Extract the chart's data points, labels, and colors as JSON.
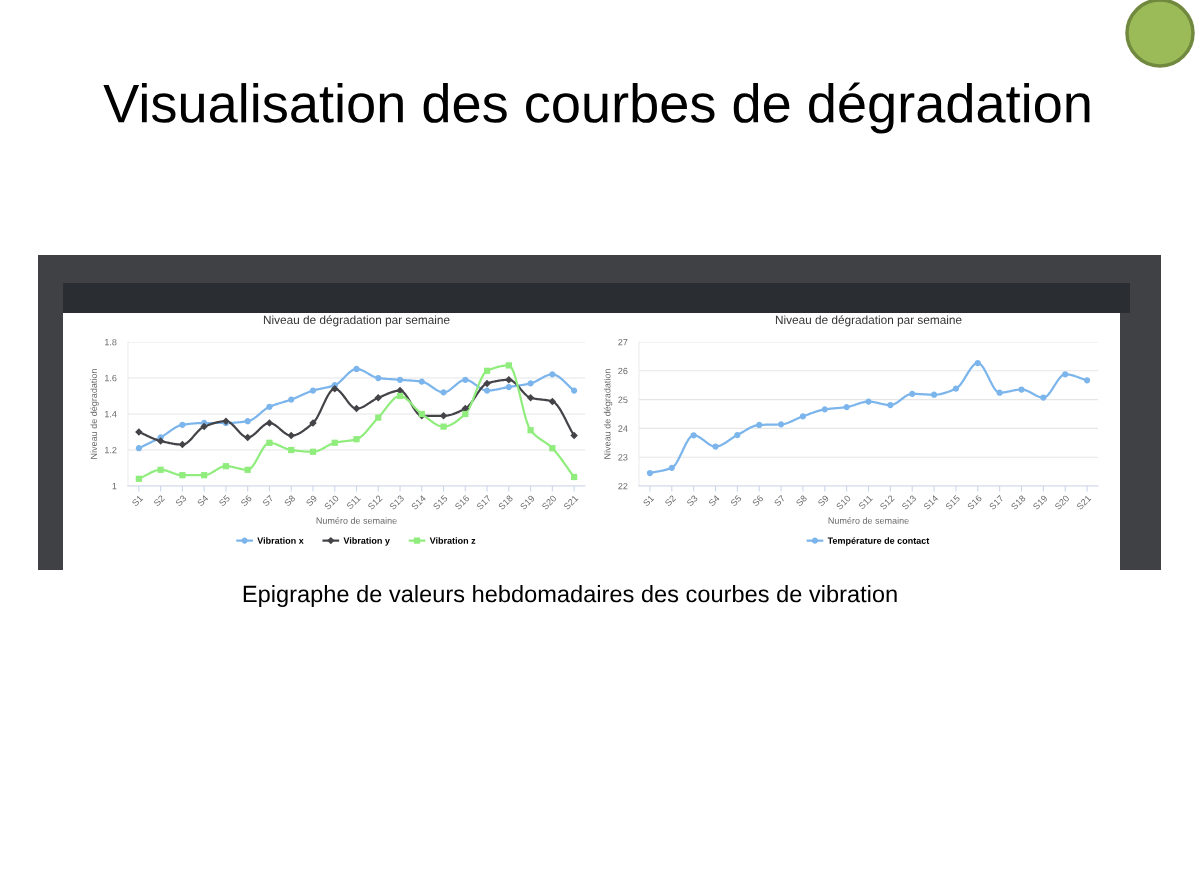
{
  "chart_data": [
    {
      "type": "line",
      "title": "Niveau de dégradation par semaine",
      "xlabel": "Numéro de semaine",
      "ylabel": "Niveau de dégradation",
      "categories": [
        "S1",
        "S2",
        "S3",
        "S4",
        "S5",
        "S6",
        "S7",
        "S8",
        "S9",
        "S10",
        "S11",
        "S12",
        "S13",
        "S14",
        "S15",
        "S16",
        "S17",
        "S18",
        "S19",
        "S20",
        "S21"
      ],
      "series": [
        {
          "name": "Vibration x",
          "color": "#7cb5ec",
          "marker": "circle",
          "values": [
            1.21,
            1.27,
            1.34,
            1.35,
            1.35,
            1.36,
            1.44,
            1.48,
            1.53,
            1.56,
            1.65,
            1.6,
            1.59,
            1.58,
            1.52,
            1.59,
            1.53,
            1.55,
            1.57,
            1.62,
            1.53
          ]
        },
        {
          "name": "Vibration y",
          "color": "#434348",
          "marker": "diamond",
          "values": [
            1.3,
            1.25,
            1.23,
            1.33,
            1.36,
            1.27,
            1.35,
            1.28,
            1.35,
            1.54,
            1.43,
            1.49,
            1.53,
            1.39,
            1.39,
            1.43,
            1.57,
            1.59,
            1.49,
            1.47,
            1.28
          ]
        },
        {
          "name": "Vibration z",
          "color": "#90ed7d",
          "marker": "square",
          "values": [
            1.04,
            1.09,
            1.06,
            1.06,
            1.11,
            1.09,
            1.24,
            1.2,
            1.19,
            1.24,
            1.26,
            1.38,
            1.5,
            1.4,
            1.33,
            1.4,
            1.64,
            1.67,
            1.31,
            1.21,
            1.05
          ]
        }
      ],
      "ylim": [
        1,
        1.8
      ],
      "yticks": [
        1,
        1.2,
        1.4,
        1.6,
        1.8
      ],
      "grid": "y",
      "legend": "bottom",
      "line_style": "solid",
      "annotations": [
        "Visualisation des courbes de dégradation",
        "Epigraphe de valeurs hebdomadaires des courbes de vibration"
      ]
    },
    {
      "type": "line",
      "title": "Niveau de dégradation par semaine",
      "xlabel": "Numéro de semaine",
      "ylabel": "Niveau de dégradation",
      "categories": [
        "S1",
        "S2",
        "S3",
        "S4",
        "S5",
        "S6",
        "S7",
        "S8",
        "S9",
        "S10",
        "S11",
        "S12",
        "S13",
        "S14",
        "S15",
        "S16",
        "S17",
        "S18",
        "S19",
        "S20",
        "S21"
      ],
      "series": [
        {
          "name": "Température de contact",
          "color": "#7cb5ec",
          "marker": "circle",
          "values": [
            22.45,
            22.63,
            23.76,
            23.37,
            23.77,
            24.12,
            24.14,
            24.42,
            24.66,
            24.74,
            24.93,
            24.81,
            25.2,
            25.17,
            25.38,
            26.27,
            25.24,
            25.35,
            25.07,
            25.88,
            25.67
          ]
        }
      ],
      "ylim": [
        22,
        27
      ],
      "yticks": [
        22,
        23,
        24,
        25,
        26,
        27
      ],
      "grid": "y",
      "legend": "bottom",
      "line_style": "solid"
    }
  ]
}
